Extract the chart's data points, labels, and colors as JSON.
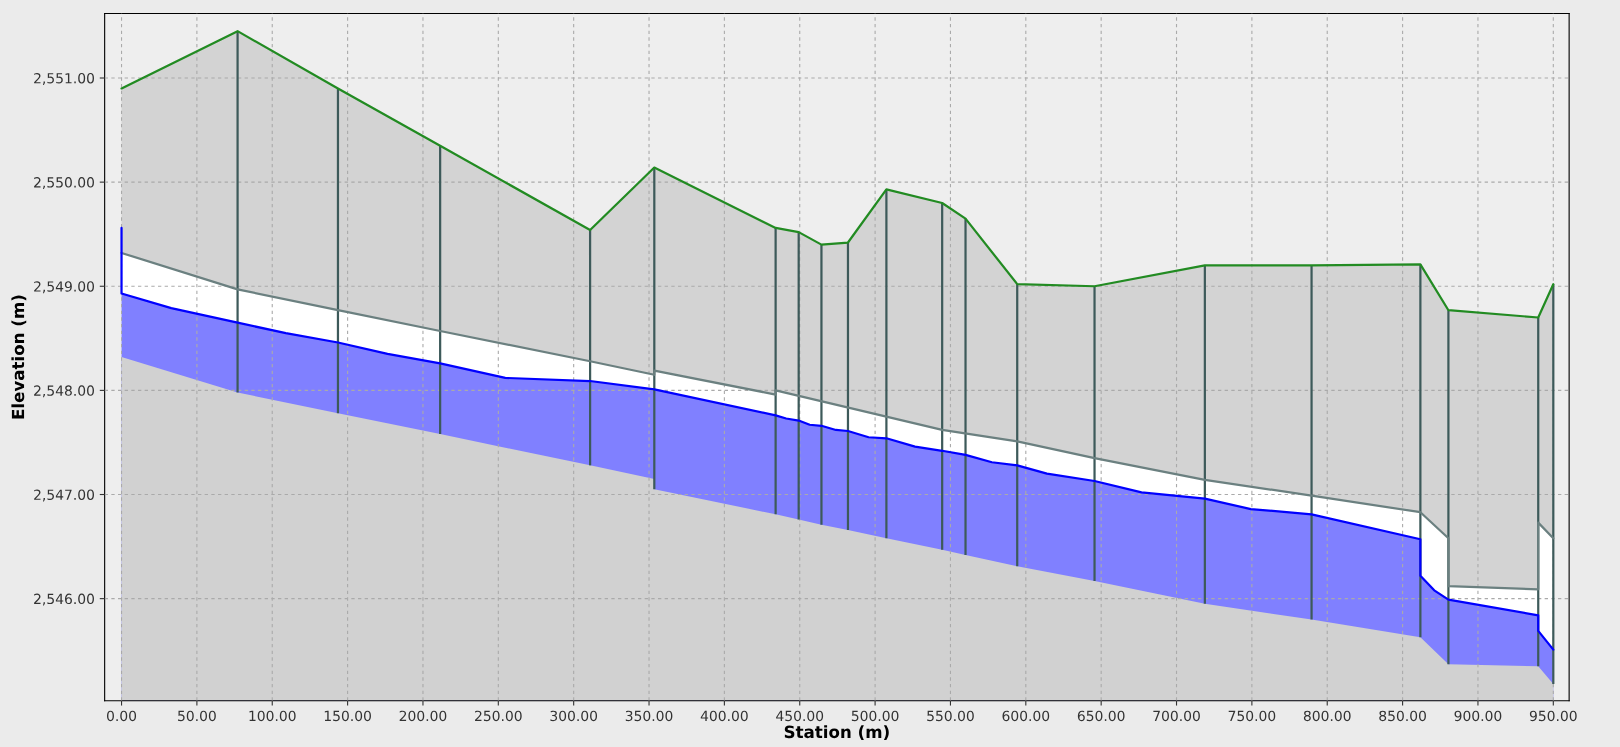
{
  "chart_data": {
    "type": "area",
    "xlabel": "Station (m)",
    "ylabel": "Elevation (m)",
    "xlim": [
      -11.2,
      960.5
    ],
    "ylim": [
      2545.02,
      2551.62
    ],
    "xticks": [
      {
        "value": 0,
        "label": "0.00"
      },
      {
        "value": 50,
        "label": "50.00"
      },
      {
        "value": 100,
        "label": "100.00"
      },
      {
        "value": 150,
        "label": "150.00"
      },
      {
        "value": 200,
        "label": "200.00"
      },
      {
        "value": 250,
        "label": "250.00"
      },
      {
        "value": 300,
        "label": "300.00"
      },
      {
        "value": 350,
        "label": "350.00"
      },
      {
        "value": 400,
        "label": "400.00"
      },
      {
        "value": 450,
        "label": "450.00"
      },
      {
        "value": 500,
        "label": "500.00"
      },
      {
        "value": 550,
        "label": "550.00"
      },
      {
        "value": 600,
        "label": "600.00"
      },
      {
        "value": 650,
        "label": "650.00"
      },
      {
        "value": 700,
        "label": "700.00"
      },
      {
        "value": 750,
        "label": "750.00"
      },
      {
        "value": 800,
        "label": "800.00"
      },
      {
        "value": 850,
        "label": "850.00"
      },
      {
        "value": 900,
        "label": "900.00"
      },
      {
        "value": 950,
        "label": "950.00"
      }
    ],
    "yticks": [
      {
        "value": 2546,
        "label": "2,546.00"
      },
      {
        "value": 2547,
        "label": "2,547.00"
      },
      {
        "value": 2548,
        "label": "2,548.00"
      },
      {
        "value": 2549,
        "label": "2,549.00"
      },
      {
        "value": 2550,
        "label": "2,550.00"
      },
      {
        "value": 2551,
        "label": "2,551.00"
      }
    ],
    "grid": true,
    "series": [
      {
        "color": "#228b22",
        "colors": [
          "#d3d3d3",
          "#d3d3d3",
          "#d3d3d3",
          "#d3d3d3",
          "#d3d3d3",
          "#d3d3d3",
          "#d3d3d3",
          "#d3d3d3",
          "#d3d3d3",
          "#d3d3d3",
          "#d3d3d3",
          "#d3d3d3",
          "#d3d3d3",
          "#d3d3d3",
          "#d3d3d3",
          "#d3d3d3",
          "#d3d3d3",
          "#d3d3d3",
          "#d3d3d3",
          "#d3d3d3",
          "#d3d3d3"
        ],
        "x": [
          0,
          77,
          143.6,
          211.4,
          310.9,
          353.5,
          434,
          449.3,
          464.4,
          482,
          507.5,
          544.5,
          560,
          594.3,
          645.6,
          718.8,
          789.6,
          861.8,
          880.4,
          940,
          950
        ],
        "values": [
          2550.9,
          2551.45,
          2550.9,
          2550.35,
          2549.54,
          2550.14,
          2549.56,
          2549.52,
          2549.4,
          2549.42,
          2549.93,
          2549.8,
          2549.65,
          2549.02,
          2549.0,
          2549.2,
          2549.2,
          2549.21,
          2548.77,
          2548.7,
          2549.02
        ]
      },
      {
        "color": "#6b8080",
        "colors": [
          "#ffffff",
          "#ffffff",
          "#ffffff",
          "#ffffff",
          "#ffffff",
          "#ffffff",
          "#ffffff",
          "#ffffff",
          "#ffffff",
          "#ffffff",
          "#ffffff",
          "#ffffff",
          "#ffffff",
          "#ffffff",
          "#ffffff",
          "#ffffff",
          "#ffffff",
          "#ffffff",
          "#ffffff",
          "#ffffff"
        ],
        "x": [
          0,
          77,
          143.6,
          211.4,
          310.9,
          353.5,
          353.5,
          434,
          434,
          544.5,
          594.3,
          645.6,
          718.8,
          789.6,
          861.8,
          880.4,
          880.4,
          940,
          940,
          950
        ],
        "values": [
          2549.32,
          2548.97,
          2548.77,
          2548.57,
          2548.28,
          2548.15,
          2548.19,
          2547.96,
          2548.0,
          2547.62,
          2547.51,
          2547.35,
          2547.14,
          2546.99,
          2546.83,
          2546.58,
          2546.12,
          2546.09,
          2546.73,
          2546.58
        ]
      },
      {
        "color": "#0000ff",
        "colors": [
          "#8080ff",
          "#8080ff",
          "#8080ff",
          "#8080ff",
          "#8080ff",
          "#8080ff",
          "#8080ff",
          "#8080ff",
          "#8080ff",
          "#8080ff",
          "#8080ff",
          "#8080ff",
          "#8080ff",
          "#8080ff",
          "#8080ff",
          "#8080ff",
          "#8080ff",
          "#8080ff",
          "#8080ff",
          "#8080ff",
          "#8080ff",
          "#8080ff",
          "#8080ff",
          "#8080ff",
          "#8080ff",
          "#8080ff",
          "#8080ff",
          "#8080ff",
          "#8080ff",
          "#8080ff",
          "#8080ff",
          "#8080ff",
          "#8080ff",
          "#8080ff",
          "#8080ff",
          "#8080ff",
          "#8080ff",
          "#8080ff"
        ],
        "x": [
          0,
          0,
          33,
          77,
          109,
          143.6,
          176.5,
          211.4,
          254.6,
          310.9,
          353.5,
          434,
          441,
          449.3,
          456.6,
          464.4,
          474,
          482,
          495.7,
          507.5,
          526.5,
          544.5,
          560,
          577.5,
          594.3,
          614,
          645.6,
          676.8,
          718.8,
          749.3,
          789.6,
          861.8,
          861.8,
          871,
          880.4,
          940,
          940,
          950
        ],
        "values": [
          2549.56,
          2548.93,
          2548.79,
          2548.65,
          2548.55,
          2548.46,
          2548.35,
          2548.26,
          2548.12,
          2548.09,
          2548.01,
          2547.76,
          2547.73,
          2547.71,
          2547.67,
          2547.66,
          2547.62,
          2547.61,
          2547.55,
          2547.54,
          2547.46,
          2547.42,
          2547.38,
          2547.31,
          2547.28,
          2547.2,
          2547.13,
          2547.02,
          2546.96,
          2546.86,
          2546.81,
          2546.57,
          2546.22,
          2546.08,
          2545.99,
          2545.84,
          2545.69,
          2545.51
        ]
      },
      {
        "color": "#d1d1d1",
        "x": [
          0,
          77,
          143.6,
          211.4,
          310.9,
          353.5,
          353.5,
          434,
          449.3,
          464.4,
          482,
          507.5,
          544.5,
          560,
          594.3,
          645.6,
          718.8,
          789.6,
          861.8,
          880.4,
          940,
          950
        ],
        "values": [
          2548.32,
          2547.98,
          2547.78,
          2547.58,
          2547.28,
          2547.15,
          2547.05,
          2546.81,
          2546.76,
          2546.71,
          2546.66,
          2546.58,
          2546.47,
          2546.42,
          2546.31,
          2546.17,
          2545.95,
          2545.8,
          2545.63,
          2545.37,
          2545.35,
          2545.18
        ]
      },
      {
        "type": "line",
        "color": "#3d5a5a",
        "x": [
          77,
          77
        ],
        "values": [
          2547.98,
          2551.45
        ]
      },
      {
        "type": "line",
        "color": "#3d5a5a",
        "x": [
          143.6,
          143.6
        ],
        "values": [
          2547.78,
          2550.9
        ]
      },
      {
        "type": "line",
        "color": "#3d5a5a",
        "x": [
          211.4,
          211.4
        ],
        "values": [
          2547.58,
          2550.35
        ]
      },
      {
        "type": "line",
        "color": "#3d5a5a",
        "x": [
          310.9,
          310.9
        ],
        "values": [
          2547.28,
          2549.54
        ]
      },
      {
        "type": "line",
        "color": "#3d5a5a",
        "x": [
          353.5,
          353.5
        ],
        "values": [
          2547.05,
          2550.14
        ]
      },
      {
        "type": "line",
        "color": "#3d5a5a",
        "x": [
          434,
          434
        ],
        "values": [
          2546.81,
          2549.56
        ]
      },
      {
        "type": "line",
        "color": "#3d5a5a",
        "x": [
          449.3,
          449.3
        ],
        "values": [
          2546.76,
          2549.52
        ]
      },
      {
        "type": "line",
        "color": "#3d5a5a",
        "x": [
          464.4,
          464.4
        ],
        "values": [
          2546.71,
          2549.4
        ]
      },
      {
        "type": "line",
        "color": "#3d5a5a",
        "x": [
          482,
          482
        ],
        "values": [
          2546.66,
          2549.42
        ]
      },
      {
        "type": "line",
        "color": "#3d5a5a",
        "x": [
          507.5,
          507.5
        ],
        "values": [
          2546.58,
          2549.93
        ]
      },
      {
        "type": "line",
        "color": "#3d5a5a",
        "x": [
          544.5,
          544.5
        ],
        "values": [
          2546.47,
          2549.8
        ]
      },
      {
        "type": "line",
        "color": "#3d5a5a",
        "x": [
          560,
          560
        ],
        "values": [
          2546.42,
          2549.65
        ]
      },
      {
        "type": "line",
        "color": "#3d5a5a",
        "x": [
          594.3,
          594.3
        ],
        "values": [
          2546.31,
          2549.02
        ]
      },
      {
        "type": "line",
        "color": "#3d5a5a",
        "x": [
          645.6,
          645.6
        ],
        "values": [
          2546.17,
          2549.0
        ]
      },
      {
        "type": "line",
        "color": "#3d5a5a",
        "x": [
          718.8,
          718.8
        ],
        "values": [
          2545.95,
          2549.2
        ]
      },
      {
        "type": "line",
        "color": "#3d5a5a",
        "x": [
          789.6,
          789.6
        ],
        "values": [
          2545.8,
          2549.2
        ]
      },
      {
        "type": "line",
        "color": "#3d5a5a",
        "x": [
          861.8,
          861.8
        ],
        "values": [
          2545.63,
          2549.21
        ]
      },
      {
        "type": "line",
        "color": "#3d5a5a",
        "x": [
          880.4,
          880.4
        ],
        "values": [
          2545.37,
          2548.77
        ]
      },
      {
        "type": "line",
        "color": "#3d5a5a",
        "x": [
          940,
          940
        ],
        "values": [
          2545.35,
          2548.7
        ]
      },
      {
        "type": "line",
        "color": "#3d5a5a",
        "x": [
          950,
          950
        ],
        "values": [
          2545.18,
          2549.02
        ]
      }
    ]
  }
}
